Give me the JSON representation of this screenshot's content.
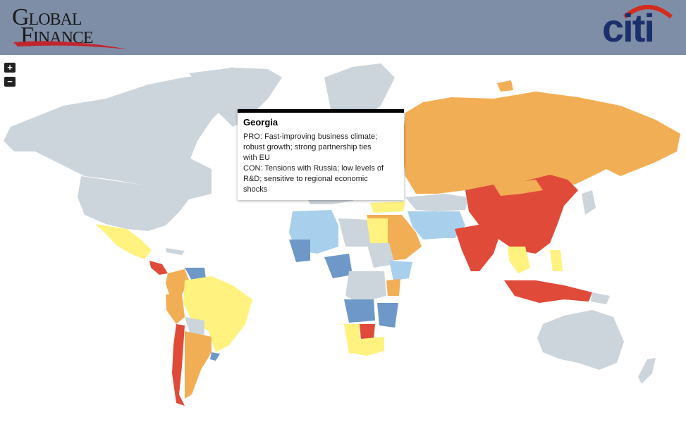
{
  "header": {
    "logo_left_line1": "Global",
    "logo_left_line2": "Finance",
    "logo_right": "citi"
  },
  "zoom": {
    "in_label": "+",
    "out_label": "−"
  },
  "colors": {
    "header_bg": "#7e8ea7",
    "no_data": "#cdd5dc",
    "dark_red": "#e04a38",
    "orange": "#f2ae55",
    "yellow": "#fff27e",
    "light_blue": "#a8d0ec",
    "mid_blue": "#6d98c8"
  },
  "tooltip": {
    "title": "Georgia",
    "pro_line1": "PRO: Fast-improving business climate;",
    "pro_line2": "robust growth; strong partnership ties",
    "pro_line3": "with EU",
    "con_line1": "CON: Tensions with Russia; low levels of",
    "con_line2": "R&D; sensitive to regional economic",
    "con_line3": "shocks"
  }
}
